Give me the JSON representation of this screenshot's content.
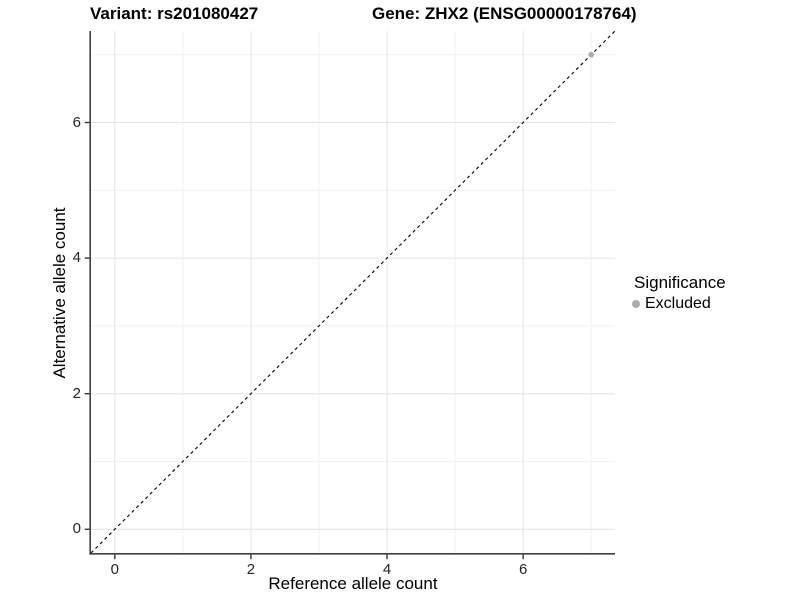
{
  "figure": {
    "title_left": "Variant: rs201080427",
    "title_right": "Gene: ZHX2 (ENSG00000178764)"
  },
  "chart_data": {
    "type": "scatter",
    "title": "Variant: rs201080427   Gene: ZHX2 (ENSG00000178764)",
    "xlabel": "Reference allele count",
    "ylabel": "Alternative allele count",
    "xlim": [
      -0.35,
      7.35
    ],
    "ylim": [
      -0.35,
      7.35
    ],
    "x_major_ticks": [
      0,
      2,
      4,
      6
    ],
    "y_major_ticks": [
      0,
      2,
      4,
      6
    ],
    "x_minor_gridlines": [
      1,
      3,
      5,
      7
    ],
    "y_minor_gridlines": [
      1,
      3,
      5,
      7
    ],
    "grid": true,
    "series": [
      {
        "name": "Excluded",
        "marker": "circle",
        "color": "#ababab",
        "points": [
          {
            "x": 7,
            "y": 7
          }
        ]
      }
    ],
    "reference_line": {
      "type": "identity y=x",
      "style": "dashed",
      "color": "#000000",
      "from": [
        -0.35,
        -0.35
      ],
      "to": [
        7.35,
        7.35
      ]
    },
    "legend": {
      "title": "Significance",
      "position": "right",
      "items": [
        {
          "label": "Excluded",
          "color": "#ababab",
          "marker": "circle"
        }
      ]
    },
    "colors": {
      "panel_background": "#ffffff",
      "grid_major": "#e4e4e4",
      "grid_minor": "#f1f1f1",
      "axis_line": "#404040",
      "tick_mark": "#333333",
      "tick_label": "#262626",
      "title_text": "#000000"
    }
  }
}
